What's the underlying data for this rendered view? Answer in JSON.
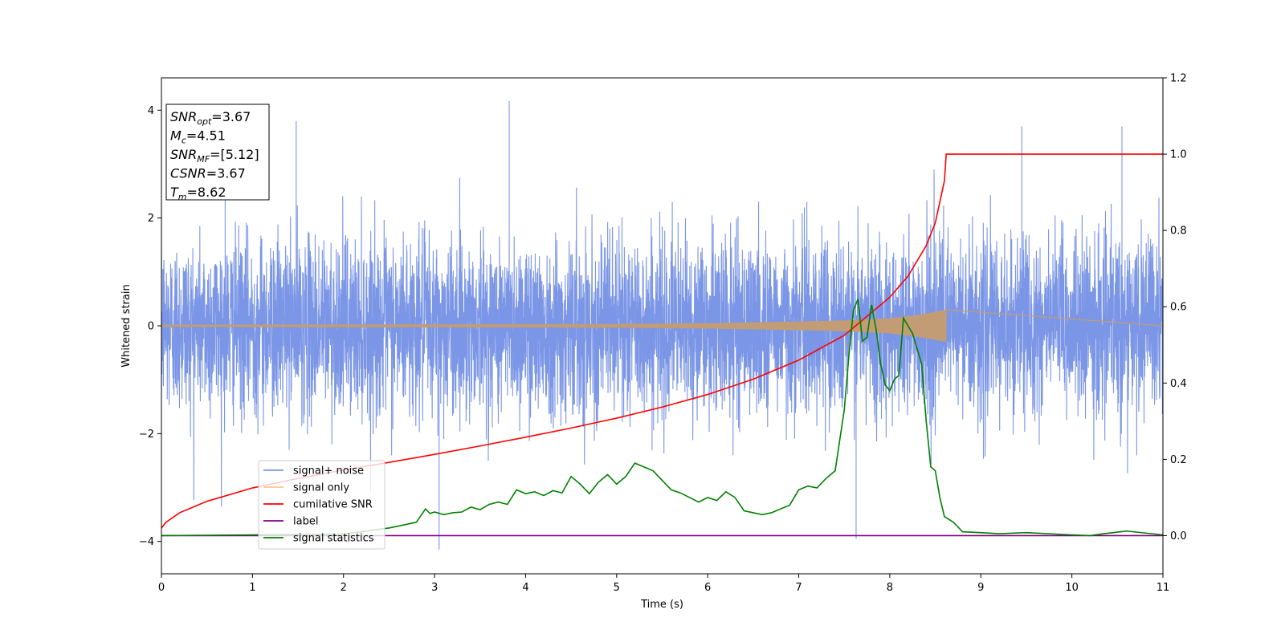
{
  "chart_data": {
    "type": "line",
    "title": "",
    "xlabel": "Time (s)",
    "ylabel": "Whitened strain",
    "y2label": "",
    "xlim": [
      0,
      11
    ],
    "ylim": [
      -4.6,
      4.6
    ],
    "y2lim": [
      -0.1,
      1.2
    ],
    "x_ticks": [
      0,
      1,
      2,
      3,
      4,
      5,
      6,
      7,
      8,
      9,
      10,
      11
    ],
    "y_ticks": [
      -4,
      -2,
      0,
      2,
      4
    ],
    "y_tick_labels": [
      "−4",
      "−2",
      "0",
      "2",
      "4"
    ],
    "y2_ticks": [
      0.0,
      0.2,
      0.4,
      0.6,
      0.8,
      1.0,
      1.2
    ],
    "y2_tick_labels": [
      "0.0",
      "0.2",
      "0.4",
      "0.6",
      "0.8",
      "1.0",
      "1.2"
    ],
    "grid": false,
    "legend_position": "lower-left",
    "annotation": {
      "lines": [
        {
          "base": "SNR",
          "sub": "opt",
          "rest": "=3.67"
        },
        {
          "base": "M",
          "sub": "c",
          "rest": "=4.51"
        },
        {
          "base": "SNR",
          "sub": "MF",
          "rest": "=[5.12]"
        },
        {
          "base": "CSNR",
          "sub": "",
          "rest": "=3.67"
        },
        {
          "base": "T",
          "sub": "m",
          "rest": "=8.62"
        }
      ]
    },
    "series": [
      {
        "name": "signal+ noise",
        "axis": "left",
        "color": "#7b96e6",
        "kind": "noise",
        "sigma": 0.8,
        "x_range": [
          0,
          11
        ],
        "peaks": [
          [
            3.82,
            4.17
          ],
          [
            3.05,
            -4.15
          ],
          [
            7.63,
            -3.95
          ],
          [
            9.45,
            3.7
          ],
          [
            10.55,
            3.7
          ],
          [
            1.48,
            3.8
          ],
          [
            0.7,
            3.7
          ]
        ]
      },
      {
        "name": "signal only",
        "axis": "left",
        "color": "#c19c74",
        "kind": "chirp",
        "t_merge": 8.62,
        "envelope": {
          "x": [
            0,
            2,
            4,
            5,
            6,
            7,
            7.5,
            8,
            8.3,
            8.5,
            8.62
          ],
          "amp": [
            0.02,
            0.025,
            0.03,
            0.035,
            0.05,
            0.08,
            0.1,
            0.14,
            0.2,
            0.26,
            0.3
          ]
        }
      },
      {
        "name": "cumilative SNR",
        "axis": "right",
        "color": "#ff0000",
        "x": [
          0,
          0.05,
          0.2,
          0.5,
          1,
          1.5,
          2,
          2.5,
          3,
          3.5,
          4,
          4.5,
          5,
          5.5,
          6,
          6.5,
          7,
          7.5,
          8,
          8.2,
          8.4,
          8.5,
          8.6,
          8.62,
          11
        ],
        "y": [
          0.02,
          0.035,
          0.06,
          0.09,
          0.125,
          0.15,
          0.172,
          0.192,
          0.213,
          0.235,
          0.258,
          0.282,
          0.308,
          0.337,
          0.37,
          0.41,
          0.46,
          0.525,
          0.625,
          0.68,
          0.76,
          0.82,
          0.93,
          1.0,
          1.0
        ]
      },
      {
        "name": "label",
        "axis": "right",
        "color": "#800080",
        "x": [
          0,
          11
        ],
        "y": [
          0.0,
          0.0
        ]
      },
      {
        "name": "signal statistics",
        "axis": "right",
        "color": "#008000",
        "x": [
          0,
          1,
          2,
          2.5,
          2.8,
          2.9,
          2.95,
          3.0,
          3.1,
          3.2,
          3.3,
          3.4,
          3.5,
          3.6,
          3.7,
          3.8,
          3.9,
          4.0,
          4.1,
          4.2,
          4.3,
          4.4,
          4.5,
          4.6,
          4.7,
          4.8,
          4.9,
          5.0,
          5.1,
          5.2,
          5.3,
          5.4,
          5.5,
          5.6,
          5.7,
          5.8,
          5.9,
          6.0,
          6.1,
          6.2,
          6.3,
          6.4,
          6.5,
          6.6,
          6.7,
          6.8,
          6.9,
          7.0,
          7.1,
          7.2,
          7.3,
          7.4,
          7.5,
          7.55,
          7.6,
          7.65,
          7.7,
          7.75,
          7.8,
          7.85,
          7.9,
          7.95,
          8.0,
          8.05,
          8.1,
          8.15,
          8.2,
          8.25,
          8.3,
          8.35,
          8.4,
          8.45,
          8.5,
          8.55,
          8.6,
          8.7,
          8.8,
          9.0,
          9.2,
          9.5,
          10.0,
          10.2,
          10.35,
          10.6,
          11.0
        ],
        "y": [
          0.0,
          0.002,
          0.004,
          0.02,
          0.035,
          0.07,
          0.058,
          0.062,
          0.055,
          0.06,
          0.062,
          0.075,
          0.068,
          0.082,
          0.088,
          0.082,
          0.12,
          0.11,
          0.115,
          0.105,
          0.118,
          0.112,
          0.155,
          0.135,
          0.11,
          0.14,
          0.16,
          0.135,
          0.155,
          0.19,
          0.18,
          0.17,
          0.145,
          0.12,
          0.112,
          0.1,
          0.088,
          0.1,
          0.092,
          0.115,
          0.1,
          0.065,
          0.06,
          0.055,
          0.06,
          0.07,
          0.08,
          0.12,
          0.13,
          0.125,
          0.15,
          0.17,
          0.33,
          0.47,
          0.59,
          0.62,
          0.51,
          0.52,
          0.605,
          0.54,
          0.45,
          0.395,
          0.38,
          0.41,
          0.42,
          0.57,
          0.55,
          0.53,
          0.49,
          0.45,
          0.3,
          0.18,
          0.17,
          0.1,
          0.05,
          0.035,
          0.01,
          0.008,
          0.005,
          0.008,
          0.002,
          0.0,
          0.005,
          0.012,
          0.002
        ]
      }
    ]
  }
}
